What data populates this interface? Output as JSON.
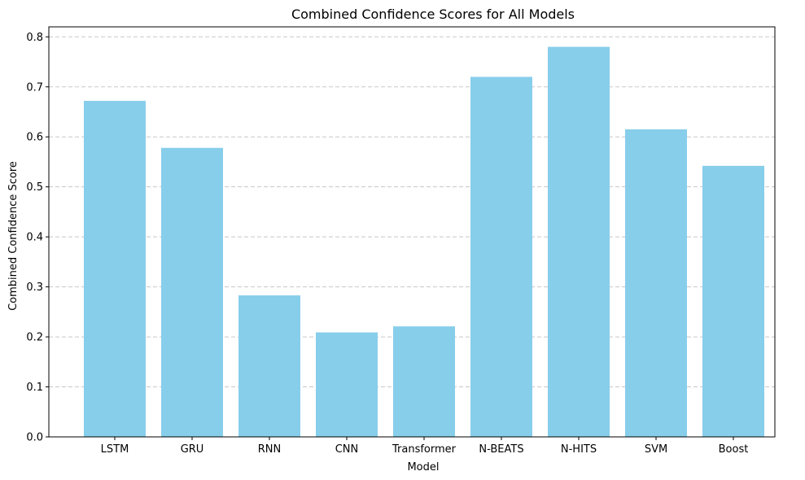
{
  "chart_data": {
    "type": "bar",
    "title": "Combined Confidence Scores for All Models",
    "xlabel": "Model",
    "ylabel": "Combined Confidence Score",
    "categories": [
      "LSTM",
      "GRU",
      "RNN",
      "CNN",
      "Transformer",
      "N-BEATS",
      "N-HITS",
      "SVM",
      "Boost"
    ],
    "values": [
      0.672,
      0.578,
      0.283,
      0.209,
      0.221,
      0.72,
      0.78,
      0.615,
      0.542
    ],
    "ylim": [
      0,
      0.82
    ],
    "yticks": [
      0.0,
      0.1,
      0.2,
      0.3,
      0.4,
      0.5,
      0.6,
      0.7,
      0.8
    ],
    "ytick_labels": [
      "0.0",
      "0.1",
      "0.2",
      "0.3",
      "0.4",
      "0.5",
      "0.6",
      "0.7",
      "0.8"
    ],
    "grid": "y-dashed",
    "bar_color": "#87ceeb",
    "grid_color": "#c8c8c8"
  }
}
